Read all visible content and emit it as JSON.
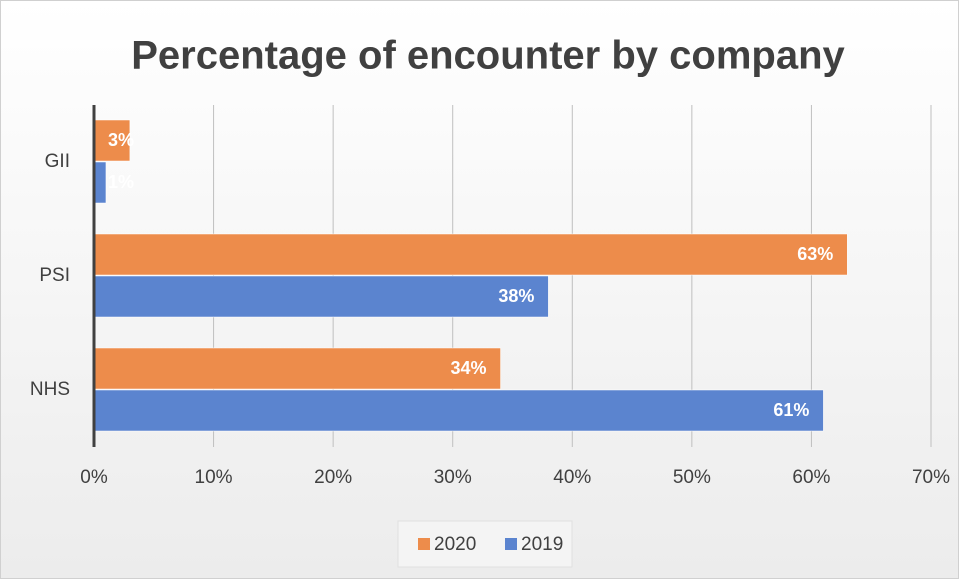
{
  "chart_data": {
    "type": "bar",
    "orientation": "horizontal",
    "title": "Percentage of encounter by company",
    "categories": [
      "GII",
      "PSI",
      "NHS"
    ],
    "series": [
      {
        "name": "2020",
        "color": "#ed8c4b",
        "values": [
          3,
          63,
          34
        ],
        "value_labels": [
          "3%",
          "63%",
          "34%"
        ]
      },
      {
        "name": "2019",
        "color": "#5b84cf",
        "values": [
          1,
          38,
          61
        ],
        "value_labels": [
          "1%",
          "38%",
          "61%"
        ]
      }
    ],
    "xlim": [
      0,
      70
    ],
    "xticks": [
      {
        "value": 0,
        "label": "0%"
      },
      {
        "value": 10,
        "label": "10%"
      },
      {
        "value": 20,
        "label": "20%"
      },
      {
        "value": 30,
        "label": "30%"
      },
      {
        "value": 40,
        "label": "40%"
      },
      {
        "value": 50,
        "label": "50%"
      },
      {
        "value": 60,
        "label": "60%"
      },
      {
        "value": 70,
        "label": "70%"
      }
    ],
    "grid": true,
    "legend": "bottom"
  }
}
